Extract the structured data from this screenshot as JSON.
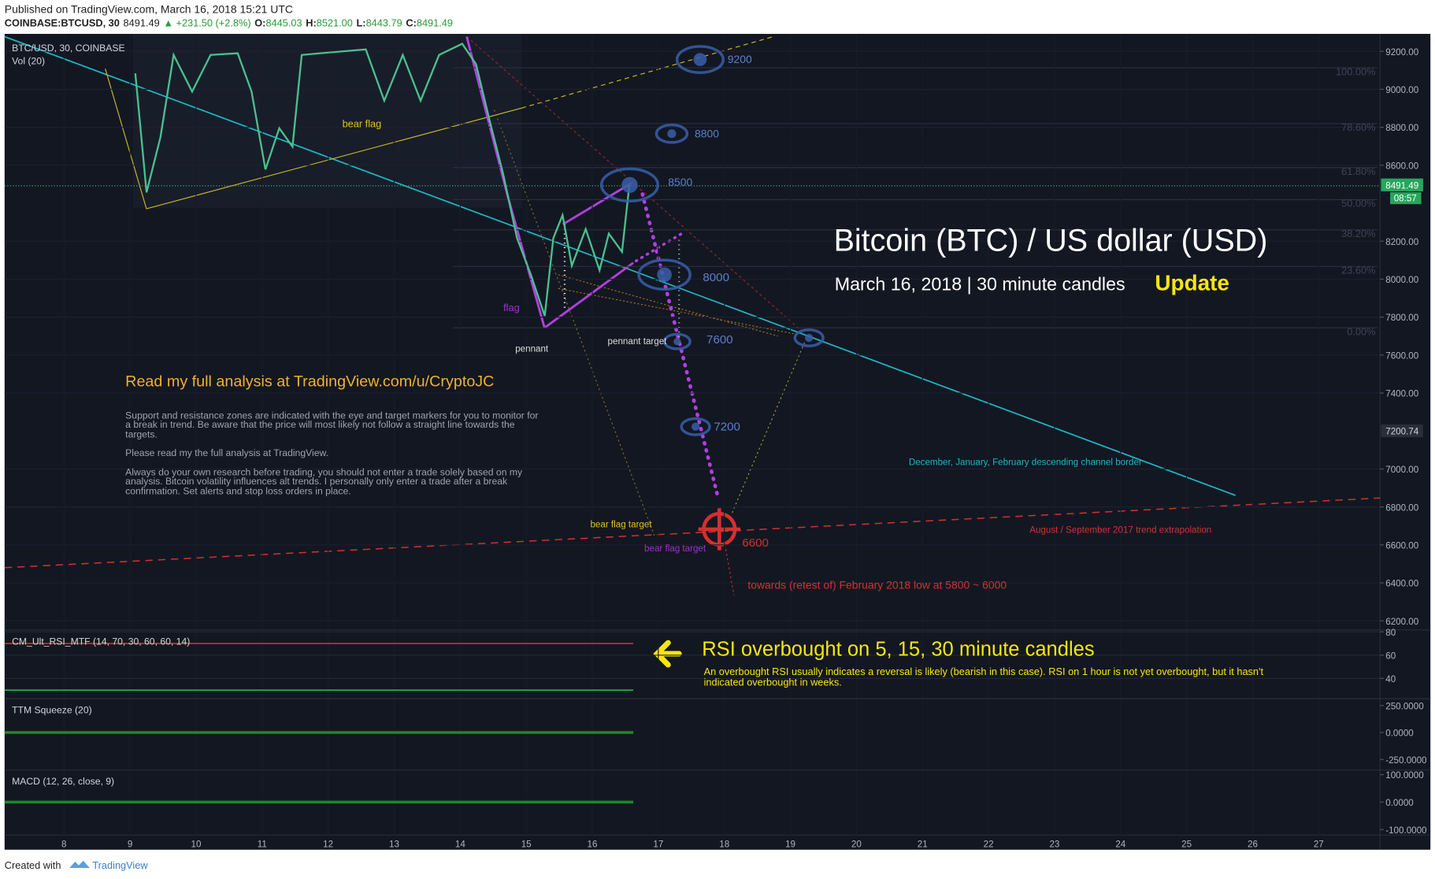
{
  "header": {
    "published": "Published on TradingView.com, March 16, 2018 15:21 UTC",
    "symbol": "COINBASE:BTCUSD, 30",
    "last": "8491.49",
    "change": "▲ +231.50 (+2.8%)",
    "ohlc": [
      {
        "label": "O:",
        "value": "8445.03"
      },
      {
        "label": "H:",
        "value": "8521.00"
      },
      {
        "label": "L:",
        "value": "8443.79"
      },
      {
        "label": "C:",
        "value": "8491.49"
      }
    ]
  },
  "price_pane": {
    "title": "BTC/USD, 30, COINBASE",
    "vol_label": "Vol (20)",
    "ylim": [
      6152,
      9292
    ],
    "yticks": [
      {
        "value": 9200,
        "label": "9200.00"
      },
      {
        "value": 9000,
        "label": "9000.00"
      },
      {
        "value": 8800,
        "label": "8800.00"
      },
      {
        "value": 8600,
        "label": "8600.00"
      },
      {
        "value": 8200,
        "label": "8200.00"
      },
      {
        "value": 8000,
        "label": "8000.00"
      },
      {
        "value": 7800,
        "label": "7800.00"
      },
      {
        "value": 7600,
        "label": "7600.00"
      },
      {
        "value": 7400,
        "label": "7400.00"
      },
      {
        "value": 7000,
        "label": "7000.00"
      },
      {
        "value": 6800,
        "label": "6800.00"
      },
      {
        "value": 6600,
        "label": "6600.00"
      },
      {
        "value": 6400,
        "label": "6400.00"
      },
      {
        "value": 6200,
        "label": "6200.00"
      }
    ],
    "last_price": {
      "value": 8491.49,
      "label": "8491.49"
    },
    "countdown": "08:57",
    "marker": {
      "value": 7200.74,
      "label": "7200.74"
    },
    "path": {
      "x": [
        9.08,
        9.25,
        9.46,
        9.66,
        9.94,
        10.22,
        10.63,
        10.84,
        11.05,
        11.26,
        11.46,
        11.6,
        11.88,
        12.57,
        12.85,
        13.13,
        13.4,
        13.68,
        14.03,
        14.24,
        14.44,
        14.65,
        14.86,
        15.07,
        15.28,
        15.41,
        15.55,
        15.69,
        15.9,
        16.11,
        16.25,
        16.45,
        16.56
      ],
      "values": [
        9084,
        8457,
        8747,
        9181,
        8988,
        9181,
        9190,
        8988,
        8578,
        8795,
        8698,
        9181,
        9190,
        9210,
        8940,
        9181,
        8940,
        9181,
        9240,
        9132,
        8843,
        8554,
        8216,
        8023,
        7806,
        8216,
        8337,
        8071,
        8264,
        8047,
        8240,
        8144,
        8491.49
      ]
    }
  },
  "xlim": [
    7.1,
    27.93
  ],
  "xticks": [
    8,
    9,
    10,
    11,
    12,
    13,
    14,
    15,
    16,
    17,
    18,
    19,
    20,
    21,
    22,
    23,
    24,
    25,
    26,
    27
  ],
  "fib_labels": [
    "100.00%",
    "78.60%",
    "61.80%",
    "50.00%",
    "38.20%",
    "23.60%",
    "0.00%"
  ],
  "labels": {
    "bear_flag": "bear flag",
    "flag": "flag",
    "pennant": "pennant",
    "pennant_target": "pennant target",
    "l9200": "9200",
    "l8800": "8800",
    "l8500": "8500",
    "l8000": "8000",
    "l7600": "7600",
    "l7200": "7200",
    "l6600": "6600",
    "title": "Bitcoin (BTC) / US dollar (USD)",
    "subtitle": "March 16, 2018 | 30 minute candles",
    "update": "Update",
    "read": "Read my full analysis at TradingView.com/u/CryptoJC",
    "p1": "Support and resistance zones are indicated with the eye and target markers for you to monitor for",
    "p2": "a break in trend. Be aware that the price will most likely not follow a straight line towards the",
    "p3": "targets.",
    "p4": "Please read my the full analysis at TradingView.",
    "p5": "Always do your own research before trading, you should not enter a trade solely based on my",
    "p6": "analysis. Bitcoin volatility influences alt trends. I personally only enter a trade after a break",
    "p7": "confirmation. Set alerts and stop loss orders in place.",
    "channel": "December, January, February descending channel border",
    "trend": "August / September 2017 trend extrapolation",
    "towards": "towards (retest of) February 2018 low at 5800 ~ 6000",
    "bft1": "bear flag target",
    "bft2": "bear flag target",
    "rsi_head": "RSI overbought on 5, 15, 30 minute candles",
    "rsi_t1": "An overbought RSI usually indicates a reversal is likely (bearish in this case). RSI on 1 hour is not yet overbought, but it hasn't",
    "rsi_t2": "indicated overbought in weeks."
  },
  "rsi_pane": {
    "title": "CM_Ult_RSI_MTF (14, 70, 30, 60, 60, 14)",
    "ylim": [
      23.5,
      81.6
    ],
    "yticks": [
      80,
      60,
      40
    ],
    "levels": [
      70,
      30
    ]
  },
  "ttm_pane": {
    "title": "TTM Squeeze (20)",
    "ylim": [
      -339,
      313.6
    ],
    "yticks": [
      {
        "value": 250,
        "label": "250.0000"
      },
      {
        "value": 0,
        "label": "0.0000"
      },
      {
        "value": -250,
        "label": "-250.0000"
      }
    ]
  },
  "macd_pane": {
    "title": "MACD (12, 26, close, 9)",
    "ylim": [
      -120,
      116.7
    ],
    "yticks": [
      {
        "value": 100,
        "label": "100.0000"
      },
      {
        "value": 0,
        "label": "0.0000"
      },
      {
        "value": -100,
        "label": "-100.0000"
      }
    ]
  },
  "footer": {
    "created": "Created with",
    "brand": "TradingView"
  }
}
